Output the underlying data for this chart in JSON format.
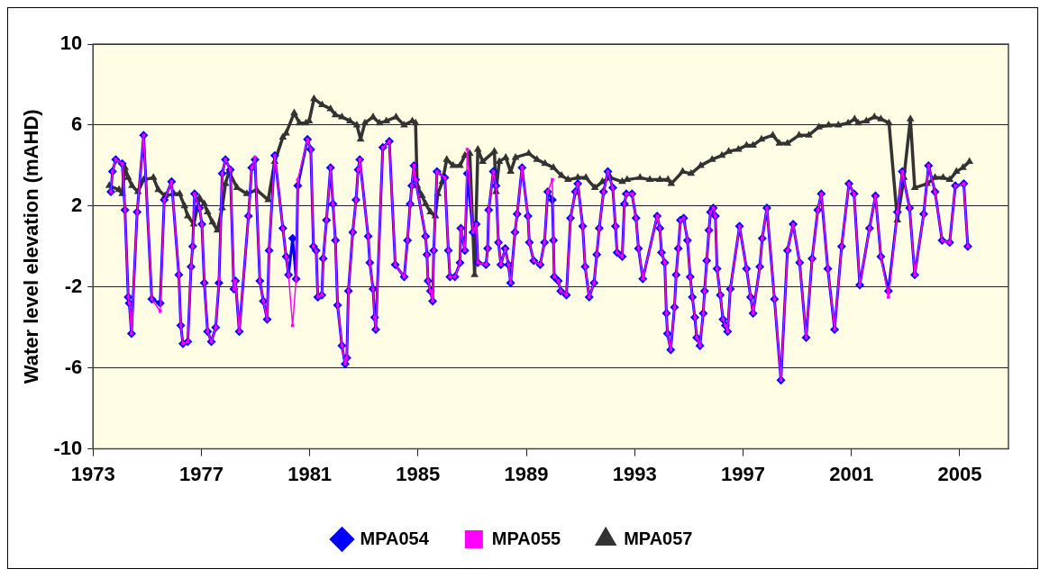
{
  "chart_data": {
    "type": "line",
    "ylabel": "Water level elevation (mAHD)",
    "xlim": [
      1973,
      2006.8
    ],
    "xticks": [
      1973,
      1977,
      1981,
      1985,
      1989,
      1993,
      1997,
      2001,
      2005
    ],
    "ylim": [
      -10,
      10
    ],
    "yticks": [
      10,
      6,
      2,
      -2,
      -6,
      -10
    ],
    "grid": "y",
    "legend": "bottom",
    "line_style": "solid",
    "series": [
      {
        "name": "MPA054",
        "color": "#0000ff",
        "marker": "diamond",
        "x": [
          1973.66,
          1973.72,
          1973.84,
          1974.08,
          1974.18,
          1974.3,
          1974.34,
          1974.42,
          1974.63,
          1974.87,
          1975.17,
          1975.48,
          1975.63,
          1975.9,
          1976.17,
          1976.24,
          1976.32,
          1976.5,
          1976.62,
          1976.68,
          1976.75,
          1976.93,
          1977.02,
          1977.11,
          1977.23,
          1977.37,
          1977.53,
          1977.65,
          1977.77,
          1977.89,
          1978.07,
          1978.2,
          1978.26,
          1978.4,
          1978.74,
          1978.86,
          1978.98,
          1979.16,
          1979.29,
          1979.43,
          1979.5,
          1979.71,
          1980.01,
          1980.13,
          1980.22,
          1980.37,
          1980.5,
          1980.56,
          1980.92,
          1981.04,
          1981.14,
          1981.24,
          1981.3,
          1981.45,
          1981.5,
          1981.62,
          1981.77,
          1981.86,
          1981.95,
          1982.03,
          1982.19,
          1982.31,
          1982.37,
          1982.43,
          1982.59,
          1982.71,
          1982.79,
          1982.85,
          1983.16,
          1983.22,
          1983.34,
          1983.4,
          1983.44,
          1983.7,
          1983.94,
          1984.16,
          1984.49,
          1984.61,
          1984.71,
          1984.77,
          1984.85,
          1984.91,
          1985.28,
          1985.33,
          1985.37,
          1985.46,
          1985.54,
          1985.58,
          1985.7,
          1985.99,
          1986.12,
          1986.18,
          1986.36,
          1986.55,
          1986.58,
          1986.73,
          1986.82,
          1987.03,
          1987.15,
          1987.21,
          1987.51,
          1987.57,
          1987.61,
          1987.78,
          1987.88,
          1987.97,
          1988.06,
          1988.22,
          1988.34,
          1988.42,
          1988.58,
          1988.66,
          1988.84,
          1989.06,
          1989.11,
          1989.27,
          1989.51,
          1989.67,
          1989.79,
          1989.96,
          1990.0,
          1990.03,
          1990.18,
          1990.27,
          1990.48,
          1990.63,
          1990.81,
          1990.9,
          1991.08,
          1991.17,
          1991.32,
          1991.5,
          1991.6,
          1991.69,
          1991.85,
          1992.01,
          1992.19,
          1992.29,
          1992.35,
          1992.54,
          1992.62,
          1992.69,
          1992.9,
          1993.05,
          1993.14,
          1993.3,
          1993.83,
          1993.93,
          1993.99,
          1994.11,
          1994.17,
          1994.21,
          1994.33,
          1994.47,
          1994.53,
          1994.61,
          1994.69,
          1994.81,
          1994.95,
          1995.05,
          1995.13,
          1995.22,
          1995.29,
          1995.41,
          1995.53,
          1995.58,
          1995.66,
          1995.74,
          1995.8,
          1995.9,
          1995.98,
          1996.04,
          1996.16,
          1996.26,
          1996.35,
          1996.43,
          1996.53,
          1996.87,
          1997.13,
          1997.28,
          1997.37,
          1997.62,
          1997.71,
          1997.88,
          1998.16,
          1998.4,
          1998.64,
          1998.85,
          1999.09,
          1999.33,
          1999.55,
          1999.76,
          1999.89,
          2000.13,
          2000.38,
          2000.64,
          2000.91,
          2001.1,
          2001.31,
          2001.67,
          2001.89,
          2002.09,
          2002.37,
          2002.7,
          2002.88,
          2003.15,
          2003.34,
          2003.67,
          2003.85,
          2004.09,
          2004.35,
          2004.63,
          2004.84,
          2005.15,
          2005.3
        ],
        "values": [
          2.7,
          3.7,
          4.3,
          4.1,
          1.8,
          -2.5,
          -2.8,
          -4.3,
          1.7,
          5.5,
          -2.6,
          -2.8,
          2.3,
          3.2,
          -1.4,
          -3.9,
          -4.8,
          -4.7,
          -1.0,
          0.0,
          2.6,
          1.9,
          1.1,
          -1.8,
          -4.2,
          -4.7,
          -4.0,
          -1.8,
          3.6,
          4.3,
          3.8,
          -2.1,
          -1.7,
          -4.2,
          1.5,
          3.9,
          4.3,
          -1.7,
          -2.7,
          -3.6,
          -0.2,
          4.5,
          0.9,
          -0.5,
          -1.4,
          0.4,
          -1.6,
          3.0,
          5.3,
          4.8,
          0.0,
          -0.2,
          -2.5,
          -2.4,
          -0.6,
          1.3,
          3.9,
          2.1,
          0.3,
          -2.9,
          -4.9,
          -5.8,
          -5.5,
          -2.2,
          0.7,
          2.3,
          3.8,
          4.3,
          0.5,
          -0.8,
          -2.1,
          -3.5,
          -4.1,
          4.9,
          5.2,
          -0.9,
          -1.5,
          0.3,
          2.1,
          3.0,
          4.0,
          3.3,
          0.5,
          -0.4,
          -1.7,
          -2.2,
          -2.7,
          -0.2,
          3.7,
          3.4,
          -0.2,
          -1.5,
          -1.5,
          -0.8,
          0.9,
          -0.2,
          3.6,
          0.7,
          1.1,
          -0.8,
          -0.9,
          -0.1,
          1.8,
          3.7,
          3.0,
          0.2,
          -0.9,
          -0.1,
          -0.9,
          -1.8,
          0.7,
          1.6,
          3.9,
          1.5,
          0.2,
          -0.7,
          -0.9,
          0.2,
          2.7,
          2.3,
          0.3,
          -1.5,
          -1.7,
          -2.2,
          -2.4,
          1.4,
          2.7,
          3.1,
          1.0,
          -1.0,
          -2.5,
          -1.8,
          -0.4,
          0.9,
          2.7,
          3.7,
          2.9,
          1.0,
          -0.3,
          -0.5,
          2.1,
          2.6,
          2.6,
          1.4,
          -0.1,
          -1.6,
          1.5,
          0.9,
          -0.3,
          -0.8,
          -3.3,
          -4.3,
          -5.1,
          -3.0,
          -1.4,
          -0.1,
          1.3,
          1.4,
          0.3,
          -1.5,
          -2.5,
          -3.5,
          -4.5,
          -4.9,
          -3.3,
          -2.2,
          -0.7,
          0.8,
          1.7,
          1.9,
          1.5,
          -1.1,
          -2.4,
          -3.6,
          -3.9,
          -4.2,
          -2.1,
          1.0,
          -1.1,
          -2.5,
          -3.3,
          -1.0,
          0.4,
          1.9,
          -2.6,
          -6.6,
          -0.2,
          1.1,
          -0.8,
          -4.5,
          -0.6,
          1.8,
          2.6,
          -1.1,
          -4.1,
          0.0,
          3.1,
          2.6,
          -1.9,
          0.9,
          2.5,
          -0.5,
          -2.2,
          1.7,
          3.7,
          1.9,
          -1.4,
          1.6,
          4.0,
          2.7,
          0.3,
          0.2,
          3.0,
          3.1,
          0.0
        ]
      },
      {
        "name": "MPA055",
        "color": "#ff00ff",
        "marker": "square",
        "x": [
          1973.66,
          1973.72,
          1973.84,
          1974.08,
          1974.18,
          1974.3,
          1974.34,
          1974.42,
          1974.63,
          1974.87,
          1975.17,
          1975.48,
          1975.63,
          1975.9,
          1976.17,
          1976.24,
          1976.32,
          1976.5,
          1976.62,
          1976.68,
          1976.75,
          1976.93,
          1977.02,
          1977.11,
          1977.23,
          1977.37,
          1977.53,
          1977.65,
          1977.77,
          1977.89,
          1978.07,
          1978.2,
          1978.26,
          1978.4,
          1978.74,
          1978.86,
          1978.98,
          1979.16,
          1979.29,
          1979.43,
          1979.5,
          1979.71,
          1980.01,
          1980.13,
          1980.22,
          1980.37,
          1980.5,
          1980.56,
          1980.92,
          1981.04,
          1981.14,
          1981.24,
          1981.3,
          1981.45,
          1981.5,
          1981.62,
          1981.77,
          1981.86,
          1981.95,
          1982.03,
          1982.19,
          1982.31,
          1982.37,
          1982.43,
          1982.59,
          1982.71,
          1982.79,
          1982.85,
          1983.16,
          1983.22,
          1983.34,
          1983.4,
          1983.44,
          1983.7,
          1983.94,
          1984.16,
          1984.49,
          1984.61,
          1984.71,
          1984.77,
          1984.85,
          1984.91,
          1985.28,
          1985.33,
          1985.37,
          1985.46,
          1985.54,
          1985.58,
          1985.7,
          1985.99,
          1986.12,
          1986.18,
          1986.36,
          1986.55,
          1986.58,
          1986.73,
          1986.82,
          1987.03,
          1987.15,
          1987.21,
          1987.51,
          1987.57,
          1987.61,
          1987.78,
          1987.88,
          1987.97,
          1988.06,
          1988.22,
          1988.34,
          1988.42,
          1988.58,
          1988.66,
          1988.84,
          1989.06,
          1989.11,
          1989.27,
          1989.51,
          1989.67,
          1989.79,
          1989.96,
          1990.0,
          1990.03,
          1990.18,
          1990.27,
          1990.48,
          1990.63,
          1990.81,
          1990.9,
          1991.08,
          1991.17,
          1991.32,
          1991.5,
          1991.6,
          1991.69,
          1991.85,
          1992.01,
          1992.19,
          1992.29,
          1992.35,
          1992.54,
          1992.62,
          1992.69,
          1992.9,
          1993.05,
          1993.14,
          1993.3,
          1993.83,
          1993.93,
          1993.99,
          1994.11,
          1994.17,
          1994.21,
          1994.33,
          1994.47,
          1994.53,
          1994.61,
          1994.69,
          1994.81,
          1994.95,
          1995.05,
          1995.13,
          1995.22,
          1995.29,
          1995.41,
          1995.53,
          1995.58,
          1995.66,
          1995.74,
          1995.8,
          1995.9,
          1995.98,
          1996.04,
          1996.16,
          1996.26,
          1996.35,
          1996.43,
          1996.53,
          1996.87,
          1997.13,
          1997.28,
          1997.37,
          1997.62,
          1997.71,
          1997.88,
          1998.16,
          1998.4,
          1998.64,
          1998.85,
          1999.09,
          1999.33,
          1999.55,
          1999.76,
          1999.89,
          2000.13,
          2000.38,
          2000.64,
          2000.91,
          2001.1,
          2001.31,
          2001.67,
          2001.89,
          2002.09,
          2002.37,
          2002.7,
          2002.88,
          2003.15,
          2003.34,
          2003.67,
          2003.85,
          2004.09,
          2004.35,
          2004.63,
          2004.84,
          2005.15,
          2005.3
        ],
        "values": [
          2.7,
          3.7,
          4.3,
          4.1,
          1.8,
          -2.5,
          -2.8,
          -4.3,
          1.7,
          5.5,
          -2.6,
          -3.2,
          2.3,
          3.2,
          -1.4,
          -3.9,
          -4.8,
          -4.7,
          -1.0,
          0.0,
          2.6,
          1.9,
          1.1,
          -1.8,
          -4.2,
          -4.7,
          -4.0,
          -1.6,
          3.6,
          4.3,
          3.8,
          -2.1,
          -1.7,
          -4.2,
          1.5,
          3.9,
          4.4,
          -1.7,
          -2.7,
          -3.6,
          -0.2,
          4.5,
          0.9,
          -0.5,
          -1.4,
          -3.9,
          -1.6,
          3.3,
          5.3,
          4.8,
          0.0,
          -0.2,
          -2.5,
          -2.4,
          -0.6,
          1.3,
          3.9,
          2.1,
          0.3,
          -2.9,
          -4.9,
          -5.8,
          -5.5,
          -2.2,
          0.7,
          2.3,
          3.8,
          4.3,
          0.5,
          -0.8,
          -2.1,
          -3.5,
          -4.1,
          4.9,
          5.2,
          -0.9,
          -1.5,
          0.3,
          2.1,
          3.0,
          4.0,
          3.3,
          0.5,
          -0.4,
          -1.7,
          -2.2,
          -2.7,
          -0.2,
          3.7,
          3.4,
          -0.2,
          -1.5,
          -1.5,
          -0.8,
          0.9,
          -0.2,
          4.8,
          0.7,
          1.1,
          -0.8,
          -0.9,
          -0.1,
          1.8,
          3.7,
          3.0,
          0.2,
          -0.9,
          -0.1,
          -0.9,
          -1.8,
          0.7,
          1.6,
          3.9,
          1.5,
          0.2,
          -0.7,
          -0.9,
          0.2,
          2.7,
          3.3,
          0.3,
          -1.5,
          -1.7,
          -2.2,
          -2.4,
          1.4,
          2.7,
          3.1,
          1.0,
          -1.0,
          -2.5,
          -1.8,
          -0.4,
          0.9,
          2.7,
          3.7,
          2.9,
          1.0,
          -0.3,
          -0.5,
          2.1,
          2.6,
          2.6,
          1.4,
          -0.1,
          -1.6,
          1.5,
          0.9,
          -0.3,
          -0.8,
          -3.3,
          -4.3,
          -5.1,
          -3.0,
          -1.4,
          -0.1,
          1.3,
          1.4,
          0.3,
          -1.5,
          -2.5,
          -3.5,
          -4.5,
          -4.9,
          -3.3,
          -2.2,
          -0.7,
          0.8,
          1.7,
          1.9,
          1.5,
          -1.1,
          -2.4,
          -3.6,
          -3.9,
          -4.2,
          -2.1,
          1.0,
          -1.1,
          -2.5,
          -3.3,
          -1.0,
          0.4,
          1.9,
          -2.6,
          -6.6,
          -0.2,
          1.1,
          -0.8,
          -4.5,
          -0.6,
          1.8,
          2.6,
          -1.1,
          -4.1,
          0.0,
          3.1,
          2.6,
          -1.9,
          0.9,
          2.5,
          -0.5,
          -2.5,
          1.7,
          3.7,
          1.9,
          -1.4,
          1.6,
          4.0,
          2.7,
          0.3,
          0.2,
          3.0,
          3.1,
          0.0
        ]
      },
      {
        "name": "MPA057",
        "color": "#333333",
        "marker": "triangle",
        "x": [
          1973.6,
          1973.96,
          1974.08,
          1974.18,
          1974.3,
          1974.44,
          1974.66,
          1974.87,
          1975.23,
          1975.41,
          1975.66,
          1975.99,
          1976.2,
          1976.38,
          1976.5,
          1976.72,
          1976.93,
          1977.11,
          1977.23,
          1977.41,
          1977.59,
          1977.77,
          1977.89,
          1978.02,
          1978.32,
          1978.68,
          1979.04,
          1979.47,
          1979.71,
          1980.01,
          1980.13,
          1980.43,
          1980.62,
          1980.86,
          1980.98,
          1981.16,
          1981.46,
          1981.77,
          1981.95,
          1982.19,
          1982.49,
          1982.74,
          1982.88,
          1983.04,
          1983.34,
          1983.58,
          1983.83,
          1984.19,
          1984.49,
          1984.79,
          1984.91,
          1984.97,
          1985.15,
          1985.28,
          1985.46,
          1985.64,
          1985.73,
          1985.9,
          1986.06,
          1986.3,
          1986.55,
          1986.73,
          1986.91,
          1987.09,
          1987.21,
          1987.39,
          1987.82,
          1987.88,
          1988.0,
          1988.24,
          1988.42,
          1988.6,
          1989.09,
          1989.39,
          1989.69,
          1990.0,
          1990.3,
          1990.54,
          1990.9,
          1991.2,
          1991.53,
          1991.81,
          1992.11,
          1992.54,
          1992.72,
          1993.2,
          1993.56,
          1993.93,
          1994.23,
          1994.35,
          1994.77,
          1995.08,
          1995.44,
          1995.86,
          1996.22,
          1996.47,
          1996.83,
          1997.13,
          1997.37,
          1997.68,
          1998.1,
          1998.34,
          1998.64,
          1999.07,
          1999.43,
          1999.8,
          2000.16,
          2000.52,
          2000.88,
          2001.12,
          2001.25,
          2001.55,
          2001.85,
          2002.09,
          2002.39,
          2002.7,
          2002.94,
          2003.18,
          2003.34,
          2003.79,
          2004.09,
          2004.39,
          2004.63,
          2004.88,
          2005.12,
          2005.36
        ],
        "values": [
          3.0,
          2.8,
          2.6,
          3.9,
          3.4,
          3.0,
          2.7,
          3.3,
          3.4,
          2.8,
          2.5,
          2.6,
          2.6,
          2.0,
          1.5,
          1.1,
          2.4,
          2.1,
          1.7,
          1.2,
          0.8,
          1.9,
          3.1,
          3.7,
          2.9,
          2.6,
          2.8,
          2.3,
          4.2,
          5.4,
          5.6,
          6.6,
          6.1,
          6.1,
          6.2,
          7.3,
          7.0,
          6.8,
          6.5,
          6.4,
          6.2,
          6.0,
          5.3,
          6.1,
          6.4,
          6.1,
          6.2,
          6.4,
          6.0,
          6.2,
          6.1,
          3.0,
          2.5,
          2.1,
          1.7,
          1.5,
          2.6,
          3.2,
          4.3,
          4.0,
          4.0,
          4.5,
          4.6,
          -1.4,
          4.8,
          4.2,
          4.7,
          2.7,
          4.2,
          4.4,
          3.7,
          4.4,
          4.6,
          4.3,
          4.1,
          3.9,
          3.5,
          3.3,
          3.4,
          3.4,
          2.9,
          3.2,
          3.4,
          3.2,
          3.3,
          3.4,
          3.3,
          3.3,
          3.3,
          3.1,
          3.7,
          3.6,
          4.0,
          4.3,
          4.5,
          4.7,
          4.8,
          5.0,
          5.0,
          5.3,
          5.5,
          5.1,
          5.1,
          5.5,
          5.5,
          5.9,
          6.0,
          6.0,
          6.1,
          6.3,
          6.1,
          6.2,
          6.4,
          6.3,
          6.1,
          1.3,
          3.4,
          6.3,
          2.9,
          3.1,
          3.4,
          3.4,
          3.3,
          3.7,
          3.9,
          4.2
        ]
      }
    ]
  }
}
